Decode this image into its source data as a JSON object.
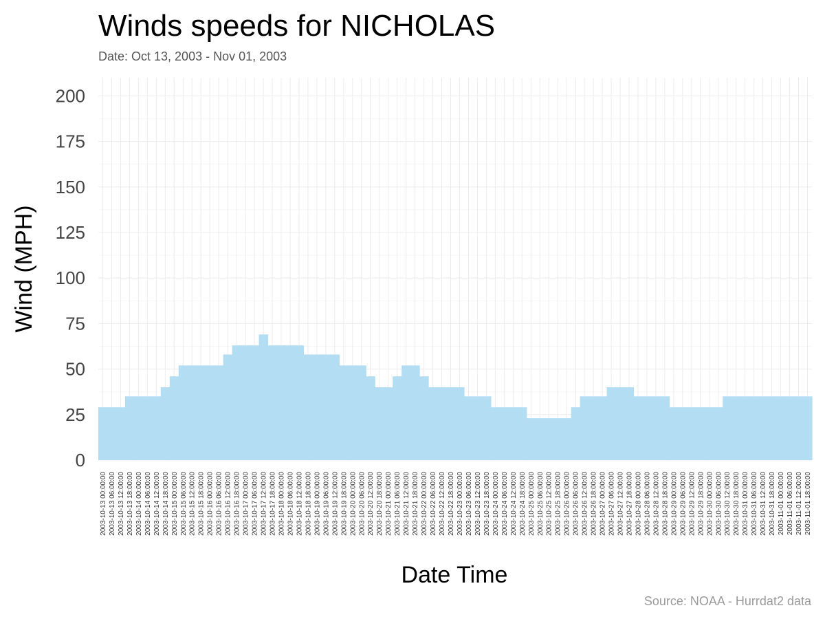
{
  "chart_data": {
    "type": "bar",
    "title": "Winds speeds for NICHOLAS",
    "subtitle": "Date:  Oct 13, 2003 - Nov 01, 2003",
    "xlabel": "Date Time",
    "ylabel": "Wind (MPH)",
    "caption": "Source: NOAA - Hurrdat2 data",
    "ylim": [
      0,
      210
    ],
    "yticks": [
      0,
      25,
      50,
      75,
      100,
      125,
      150,
      175,
      200
    ],
    "grid": true,
    "legend": "none",
    "bar_color": "#b3ddf2",
    "categories": [
      "2003-10-13 00:00:00",
      "2003-10-13 06:00:00",
      "2003-10-13 12:00:00",
      "2003-10-13 18:00:00",
      "2003-10-14 00:00:00",
      "2003-10-14 06:00:00",
      "2003-10-14 12:00:00",
      "2003-10-14 18:00:00",
      "2003-10-15 00:00:00",
      "2003-10-15 06:00:00",
      "2003-10-15 12:00:00",
      "2003-10-15 18:00:00",
      "2003-10-16 00:00:00",
      "2003-10-16 06:00:00",
      "2003-10-16 12:00:00",
      "2003-10-16 18:00:00",
      "2003-10-17 00:00:00",
      "2003-10-17 06:00:00",
      "2003-10-17 12:00:00",
      "2003-10-17 18:00:00",
      "2003-10-18 00:00:00",
      "2003-10-18 06:00:00",
      "2003-10-18 12:00:00",
      "2003-10-18 18:00:00",
      "2003-10-19 00:00:00",
      "2003-10-19 06:00:00",
      "2003-10-19 12:00:00",
      "2003-10-19 18:00:00",
      "2003-10-20 00:00:00",
      "2003-10-20 06:00:00",
      "2003-10-20 12:00:00",
      "2003-10-20 18:00:00",
      "2003-10-21 00:00:00",
      "2003-10-21 06:00:00",
      "2003-10-21 12:00:00",
      "2003-10-21 18:00:00",
      "2003-10-22 00:00:00",
      "2003-10-22 06:00:00",
      "2003-10-22 12:00:00",
      "2003-10-22 18:00:00",
      "2003-10-23 00:00:00",
      "2003-10-23 06:00:00",
      "2003-10-23 12:00:00",
      "2003-10-23 18:00:00",
      "2003-10-24 00:00:00",
      "2003-10-24 06:00:00",
      "2003-10-24 12:00:00",
      "2003-10-24 18:00:00",
      "2003-10-25 00:00:00",
      "2003-10-25 06:00:00",
      "2003-10-25 12:00:00",
      "2003-10-25 18:00:00",
      "2003-10-26 00:00:00",
      "2003-10-26 06:00:00",
      "2003-10-26 12:00:00",
      "2003-10-26 18:00:00",
      "2003-10-27 00:00:00",
      "2003-10-27 06:00:00",
      "2003-10-27 12:00:00",
      "2003-10-27 18:00:00",
      "2003-10-28 00:00:00",
      "2003-10-28 06:00:00",
      "2003-10-28 12:00:00",
      "2003-10-28 18:00:00",
      "2003-10-29 00:00:00",
      "2003-10-29 06:00:00",
      "2003-10-29 12:00:00",
      "2003-10-29 18:00:00",
      "2003-10-30 00:00:00",
      "2003-10-30 06:00:00",
      "2003-10-30 12:00:00",
      "2003-10-30 18:00:00",
      "2003-10-31 00:00:00",
      "2003-10-31 06:00:00",
      "2003-10-31 12:00:00",
      "2003-10-31 18:00:00",
      "2003-11-01 00:00:00",
      "2003-11-01 06:00:00",
      "2003-11-01 12:00:00",
      "2003-11-01 18:00:00"
    ],
    "values": [
      29,
      29,
      29,
      35,
      35,
      35,
      35,
      40,
      46,
      52,
      52,
      52,
      52,
      52,
      58,
      63,
      63,
      63,
      69,
      63,
      63,
      63,
      63,
      58,
      58,
      58,
      58,
      52,
      52,
      52,
      46,
      40,
      40,
      46,
      52,
      52,
      46,
      40,
      40,
      40,
      40,
      35,
      35,
      35,
      29,
      29,
      29,
      29,
      23,
      23,
      23,
      23,
      23,
      29,
      35,
      35,
      35,
      40,
      40,
      40,
      35,
      35,
      35,
      35,
      29,
      29,
      29,
      29,
      29,
      29,
      35,
      35,
      35,
      35,
      35,
      35,
      35,
      35,
      35,
      35
    ]
  }
}
